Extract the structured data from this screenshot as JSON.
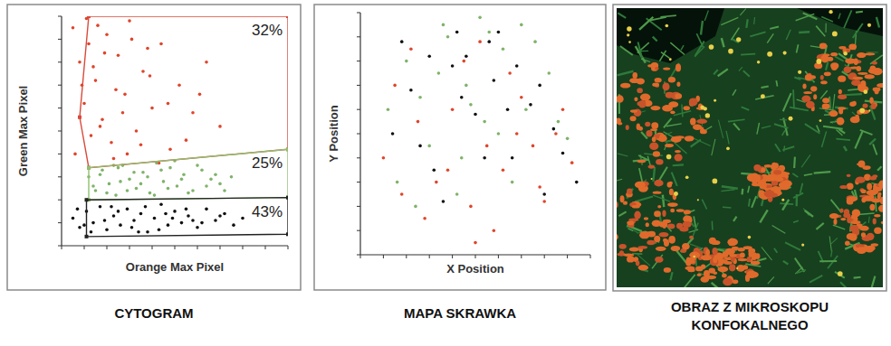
{
  "chart_data": [
    {
      "type": "scatter",
      "title": "CYTOGRAM",
      "x_label": "Orange Max Pixel",
      "y_label": "Green Max Pixel",
      "xlim": [
        0,
        100
      ],
      "ylim": [
        0,
        100
      ],
      "xticks": [
        0,
        10,
        20,
        30,
        40,
        50,
        60,
        70,
        80,
        90,
        100
      ],
      "yticks": [
        0,
        10,
        20,
        30,
        40,
        50,
        60,
        70,
        80,
        90,
        100
      ],
      "tick_labels": false,
      "grid": false,
      "data_labels": true,
      "marker": "dot",
      "series": [
        {
          "color": "#e0442a",
          "x": [
            5,
            8,
            10,
            12,
            15,
            18,
            20,
            22,
            25,
            28,
            30,
            33,
            36,
            40,
            44,
            48,
            52,
            58,
            64,
            70,
            6,
            9,
            13,
            16,
            19,
            23,
            27,
            31,
            35,
            39,
            43,
            47,
            55,
            61,
            11,
            14,
            17,
            24,
            29,
            38
          ],
          "values": [
            95,
            80,
            62,
            88,
            72,
            55,
            92,
            45,
            83,
            66,
            98,
            50,
            76,
            60,
            88,
            42,
            70,
            58,
            80,
            52,
            40,
            70,
            48,
            96,
            84,
            38,
            58,
            90,
            44,
            74,
            36,
            62,
            46,
            66,
            99,
            78,
            52,
            68,
            40,
            86
          ]
        },
        {
          "color": "#7fb36a",
          "x": [
            12,
            15,
            18,
            21,
            24,
            27,
            30,
            33,
            36,
            39,
            42,
            45,
            48,
            51,
            54,
            58,
            62,
            66,
            70,
            75,
            14,
            17,
            20,
            23,
            26,
            29,
            32,
            35,
            38,
            41,
            44,
            47,
            50,
            53,
            56,
            60,
            64,
            68,
            72,
            25
          ],
          "values": [
            30,
            24,
            33,
            27,
            22,
            35,
            29,
            25,
            32,
            23,
            36,
            28,
            34,
            26,
            31,
            24,
            33,
            29,
            27,
            30,
            26,
            31,
            23,
            35,
            28,
            24,
            32,
            27,
            30,
            22,
            33,
            25,
            37,
            29,
            23,
            35,
            26,
            31,
            24,
            34
          ]
        },
        {
          "color": "#111111",
          "x": [
            5,
            8,
            11,
            14,
            17,
            20,
            23,
            26,
            29,
            32,
            35,
            38,
            41,
            44,
            47,
            50,
            53,
            56,
            60,
            64,
            68,
            72,
            76,
            80,
            7,
            13,
            19,
            25,
            31,
            37,
            43,
            49,
            55,
            62,
            70,
            10,
            22,
            34,
            46,
            58
          ],
          "values": [
            12,
            8,
            15,
            10,
            17,
            7,
            13,
            9,
            16,
            11,
            14,
            6,
            12,
            18,
            9,
            15,
            10,
            13,
            8,
            16,
            11,
            14,
            9,
            12,
            16,
            6,
            11,
            15,
            8,
            17,
            7,
            12,
            16,
            10,
            13,
            9,
            17,
            6,
            14,
            11
          ]
        }
      ],
      "gates": [
        {
          "value": 32,
          "label": "32%",
          "color": "#d94a3a",
          "polygon": [
            [
              12,
              100
            ],
            [
              8,
              56
            ],
            [
              12,
              34
            ],
            [
              100,
              42
            ],
            [
              100,
              100
            ]
          ]
        },
        {
          "value": 25,
          "label": "25%",
          "color": "#8fbf70",
          "polygon": [
            [
              12,
              34
            ],
            [
              100,
              42
            ],
            [
              100,
              21
            ],
            [
              12,
              20
            ]
          ]
        },
        {
          "value": 43,
          "label": "43%",
          "color": "#222222",
          "polygon": [
            [
              11,
              20
            ],
            [
              100,
              21
            ],
            [
              100,
              5
            ],
            [
              11,
              4
            ]
          ]
        }
      ]
    },
    {
      "type": "scatter",
      "title": "MAPA SKRAWKA",
      "x_label": "X Position",
      "y_label": "Y Position",
      "xlim": [
        0,
        100
      ],
      "ylim": [
        0,
        100
      ],
      "xticks": [
        0,
        10,
        20,
        30,
        40,
        50,
        60,
        70,
        80,
        90,
        100
      ],
      "yticks": [
        0,
        10,
        20,
        30,
        40,
        50,
        60,
        70,
        80,
        90,
        100
      ],
      "tick_labels": false,
      "grid": false,
      "marker": "dot",
      "series": [
        {
          "color": "#e0442a",
          "x": [
            10,
            18,
            25,
            33,
            40,
            48,
            55,
            62,
            70,
            78,
            85,
            92,
            15,
            28,
            45,
            58,
            68,
            80,
            88,
            22,
            38,
            52,
            65,
            75,
            50
          ],
          "values": [
            40,
            25,
            55,
            30,
            60,
            20,
            45,
            35,
            65,
            28,
            50,
            38,
            70,
            15,
            80,
            10,
            50,
            22,
            60,
            85,
            35,
            88,
            75,
            45,
            5
          ]
        },
        {
          "color": "#7fb36a",
          "x": [
            12,
            20,
            30,
            38,
            46,
            54,
            62,
            72,
            82,
            90,
            16,
            26,
            36,
            44,
            56,
            66,
            76,
            86,
            24,
            34,
            48,
            60,
            70,
            42,
            52
          ],
          "values": [
            60,
            80,
            45,
            90,
            70,
            55,
            85,
            60,
            75,
            48,
            30,
            65,
            95,
            40,
            92,
            30,
            88,
            55,
            20,
            75,
            62,
            50,
            95,
            25,
            98
          ]
        },
        {
          "color": "#111111",
          "x": [
            14,
            22,
            32,
            40,
            50,
            58,
            66,
            74,
            84,
            94,
            18,
            30,
            42,
            54,
            64,
            78,
            88,
            26,
            36,
            46,
            56,
            68,
            80,
            44,
            60
          ],
          "values": [
            50,
            68,
            35,
            78,
            58,
            72,
            40,
            62,
            52,
            30,
            88,
            82,
            92,
            40,
            60,
            70,
            42,
            45,
            22,
            82,
            88,
            78,
            25,
            65,
            92
          ]
        }
      ]
    }
  ],
  "image_panel": {
    "caption": "OBRAZ Z MIKROSKOPU KONFOKALNEGO"
  }
}
